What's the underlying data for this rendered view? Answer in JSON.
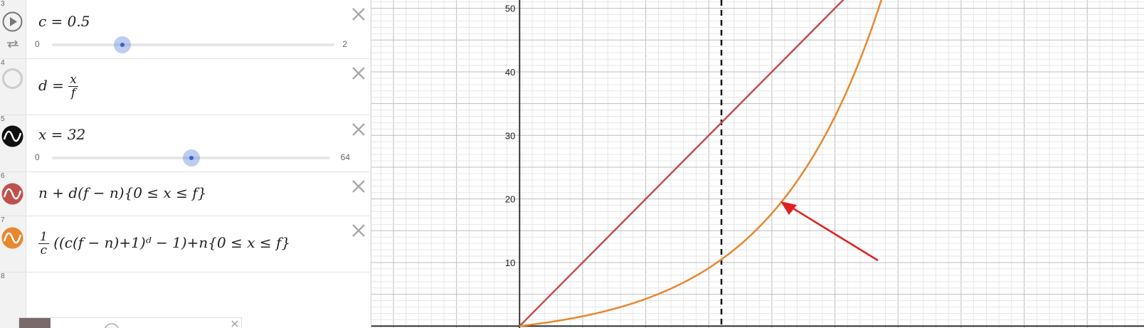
{
  "expressions": [
    {
      "num": "3",
      "label": "c = 0.5",
      "slider": {
        "min": "0",
        "max": "2",
        "value": 0.5,
        "range": [
          0,
          2
        ]
      }
    },
    {
      "num": "4",
      "label_lhs": "d =",
      "frac_num": "x",
      "frac_den": "f"
    },
    {
      "num": "5",
      "label": "x = 32",
      "slider": {
        "min": "0",
        "max": "64",
        "value": 32,
        "range": [
          0,
          64
        ]
      }
    },
    {
      "num": "6",
      "label": "n + d(f − n){0 ≤ x ≤ f}",
      "color": "#c0504d"
    },
    {
      "num": "7",
      "frac_num": "1",
      "frac_den": "c",
      "label_rest": "((c(f − n)+1)ᵈ − 1)+n{0 ≤ x ≤ f}",
      "color": "#e8872e"
    },
    {
      "num": "8"
    }
  ],
  "graph": {
    "y_ticks": [
      "10",
      "20",
      "30",
      "40",
      "50"
    ],
    "y_values": [
      10,
      20,
      30,
      40,
      50
    ],
    "x_range": [
      -23.5,
      99
    ],
    "y_range": [
      -0.3,
      51.3
    ],
    "dashed_x": 32,
    "line_color": "#c0504d",
    "curve_color": "#e8872e",
    "arrow_color": "#e02020",
    "c": 0.5,
    "n": 0,
    "f": 60
  }
}
